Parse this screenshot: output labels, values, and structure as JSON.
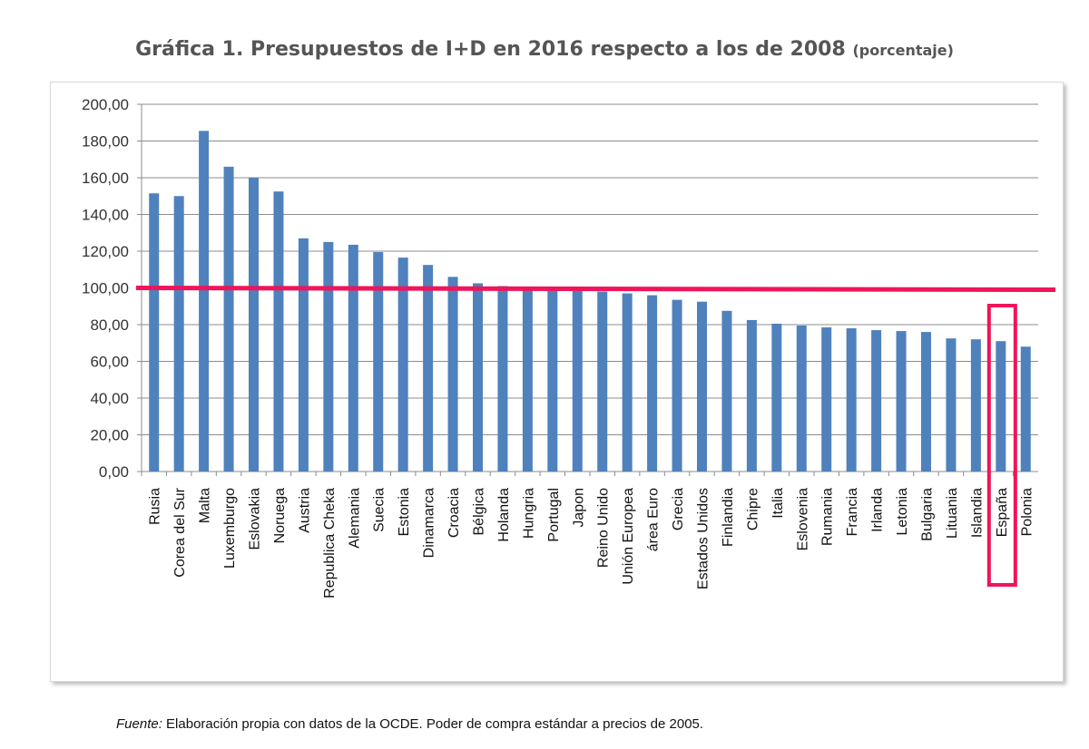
{
  "title": "Gráfica 1. Presupuestos de I+D en 2016 respecto a los de 2008",
  "title_suffix": "(porcentaje)",
  "source_label": "Fuente:",
  "source_text": "Elaboración propia con datos de la OCDE. Poder de compra estándar a precios de 2005.",
  "chart_data": {
    "type": "bar",
    "ylim": [
      0,
      200
    ],
    "ytick_values": [
      0,
      20,
      40,
      60,
      80,
      100,
      120,
      140,
      160,
      180,
      200
    ],
    "ytick_labels": [
      "0,00",
      "20,00",
      "40,00",
      "60,00",
      "80,00",
      "100,00",
      "120,00",
      "140,00",
      "160,00",
      "180,00",
      "200,00"
    ],
    "grid": true,
    "bar_color": "#4f81bd",
    "reference_line": {
      "value": 100,
      "value_end": 99,
      "color": "#f0145a"
    },
    "highlight": {
      "category": "España",
      "color": "#f0145a"
    },
    "categories": [
      "Rusia",
      "Corea del Sur",
      "Malta",
      "Luxemburgo",
      "Eslovakia",
      "Noruega",
      "Austria",
      "Republica Cheka",
      "Alemania",
      "Suecia",
      "Estonia",
      "Dinamarca",
      "Croacia",
      "Bélgica",
      "Holanda",
      "Hungria",
      "Portugal",
      "Japon",
      "Reino Unido",
      "Unión Europea",
      "área Euro",
      "Grecia",
      "Estados Unidos",
      "Finlandia",
      "Chipre",
      "Italia",
      "Eslovenia",
      "Rumania",
      "Francia",
      "Irlanda",
      "Letonia",
      "Bulgaria",
      "Lituania",
      "Islandia",
      "España",
      "Polonia"
    ],
    "values": [
      151.5,
      150,
      185.5,
      166,
      160,
      152.5,
      127,
      125,
      123.5,
      119.5,
      116.5,
      112.5,
      106,
      102.5,
      101,
      100,
      99.5,
      99,
      98,
      97,
      96,
      93.5,
      92.5,
      87.5,
      82.5,
      80.5,
      79.5,
      78.5,
      78,
      77,
      76.5,
      76,
      72.5,
      72,
      71,
      68
    ]
  }
}
